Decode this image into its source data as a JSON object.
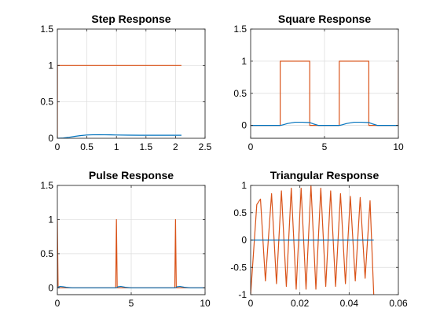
{
  "chart_data": [
    {
      "type": "line",
      "title": "Step Response",
      "xlabel": "",
      "ylabel": "",
      "xlim": [
        0,
        2.5
      ],
      "ylim": [
        0,
        1.5
      ],
      "xticks": [
        0,
        0.5,
        1,
        1.5,
        2,
        2.5
      ],
      "xtick_labels": [
        "0",
        "0.5",
        "1",
        "1.5",
        "2",
        "2.5"
      ],
      "yticks": [
        0,
        0.5,
        1,
        1.5
      ],
      "ytick_labels": [
        "0",
        "0.5",
        "1",
        "1.5"
      ],
      "grid": true,
      "series": [
        {
          "color": "#D95319",
          "x": [
            0,
            0.001,
            2.1
          ],
          "y": [
            0,
            1,
            1
          ]
        },
        {
          "color": "#0072BD",
          "x": [
            0,
            0.1,
            0.2,
            0.3,
            0.4,
            0.5,
            0.6,
            0.7,
            0.8,
            0.9,
            1.0,
            1.2,
            1.4,
            1.6,
            1.8,
            2.0,
            2.1
          ],
          "y": [
            0,
            0.004,
            0.014,
            0.027,
            0.038,
            0.045,
            0.048,
            0.049,
            0.048,
            0.047,
            0.045,
            0.043,
            0.042,
            0.042,
            0.042,
            0.042,
            0.042
          ]
        }
      ]
    },
    {
      "type": "line",
      "title": "Square Response",
      "xlabel": "",
      "ylabel": "",
      "xlim": [
        0,
        10
      ],
      "ylim": [
        -0.2,
        1.5
      ],
      "xticks": [
        0,
        5,
        10
      ],
      "xtick_labels": [
        "0",
        "5",
        "10"
      ],
      "yticks": [
        0,
        0.5,
        1,
        1.5
      ],
      "ytick_labels": [
        "0",
        "0.5",
        "1",
        "1.5"
      ],
      "grid": true,
      "series": [
        {
          "color": "#D95319",
          "x": [
            0,
            2,
            2.001,
            4,
            4.001,
            6,
            6.001,
            8,
            8.001,
            10,
            10.001
          ],
          "y": [
            0,
            0,
            1,
            1,
            0,
            0,
            1,
            1,
            0,
            0,
            1
          ]
        },
        {
          "color": "#0072BD",
          "x": [
            0,
            2,
            2.2,
            2.5,
            3.0,
            3.5,
            4.0,
            4.3,
            4.6,
            5,
            6,
            6.2,
            6.5,
            7.0,
            7.5,
            8.0,
            8.3,
            8.6,
            9,
            10
          ],
          "y": [
            0,
            0,
            0.01,
            0.03,
            0.05,
            0.05,
            0.045,
            0.02,
            0,
            0,
            0,
            0.01,
            0.03,
            0.05,
            0.05,
            0.045,
            0.02,
            0,
            0,
            0
          ]
        }
      ]
    },
    {
      "type": "line",
      "title": "Pulse Response",
      "xlabel": "",
      "ylabel": "",
      "xlim": [
        0,
        10
      ],
      "ylim": [
        -0.1,
        1.5
      ],
      "xticks": [
        0,
        5,
        10
      ],
      "xtick_labels": [
        "0",
        "5",
        "10"
      ],
      "yticks": [
        0,
        0.5,
        1,
        1.5
      ],
      "ytick_labels": [
        "0",
        "0.5",
        "1",
        "1.5"
      ],
      "grid": true,
      "series": [
        {
          "color": "#D95319",
          "x": [
            0,
            0.05,
            0.1,
            3.95,
            4.0,
            4.05,
            7.95,
            8.0,
            8.05,
            10
          ],
          "y": [
            1,
            0,
            0,
            0,
            1,
            0,
            0,
            1,
            0,
            0
          ]
        },
        {
          "color": "#0072BD",
          "x": [
            0,
            0.1,
            0.2,
            0.4,
            0.6,
            1.0,
            4.0,
            4.1,
            4.3,
            4.6,
            5.0,
            8.0,
            8.1,
            8.3,
            8.6,
            9.0,
            10
          ],
          "y": [
            0,
            0.015,
            0.02,
            0.015,
            0.008,
            0,
            0,
            0.015,
            0.02,
            0.008,
            0,
            0,
            0.015,
            0.02,
            0.008,
            0,
            0
          ]
        }
      ]
    },
    {
      "type": "line",
      "title": "Triangular Response",
      "xlabel": "",
      "ylabel": "",
      "xlim": [
        0,
        0.06
      ],
      "ylim": [
        -1,
        1
      ],
      "xticks": [
        0,
        0.02,
        0.04,
        0.06
      ],
      "xtick_labels": [
        "0",
        "0.02",
        "0.04",
        "0.06"
      ],
      "yticks": [
        -1,
        -0.5,
        0,
        0.5,
        1
      ],
      "ytick_labels": [
        "-1",
        "-0.5",
        "0",
        "0.5",
        "1"
      ],
      "grid": true,
      "series": [
        {
          "color": "#D95319",
          "x": [
            0,
            0.0025,
            0.004,
            0.006,
            0.0085,
            0.0105,
            0.0125,
            0.0145,
            0.0165,
            0.0185,
            0.0205,
            0.0225,
            0.0245,
            0.0265,
            0.0285,
            0.0305,
            0.0325,
            0.0345,
            0.0365,
            0.0385,
            0.0405,
            0.0425,
            0.0445,
            0.0465,
            0.0485,
            0.05
          ],
          "y": [
            -1,
            0.65,
            0.75,
            -0.75,
            0.85,
            -0.8,
            0.9,
            -0.85,
            0.95,
            -0.9,
            0.95,
            -0.9,
            1.0,
            -0.9,
            0.95,
            -0.85,
            0.9,
            -0.85,
            0.85,
            -0.8,
            0.8,
            -0.75,
            0.78,
            -0.7,
            0.72,
            -1.0
          ]
        },
        {
          "color": "#0072BD",
          "x": [
            0,
            0.05
          ],
          "y": [
            0,
            0
          ]
        }
      ]
    }
  ]
}
